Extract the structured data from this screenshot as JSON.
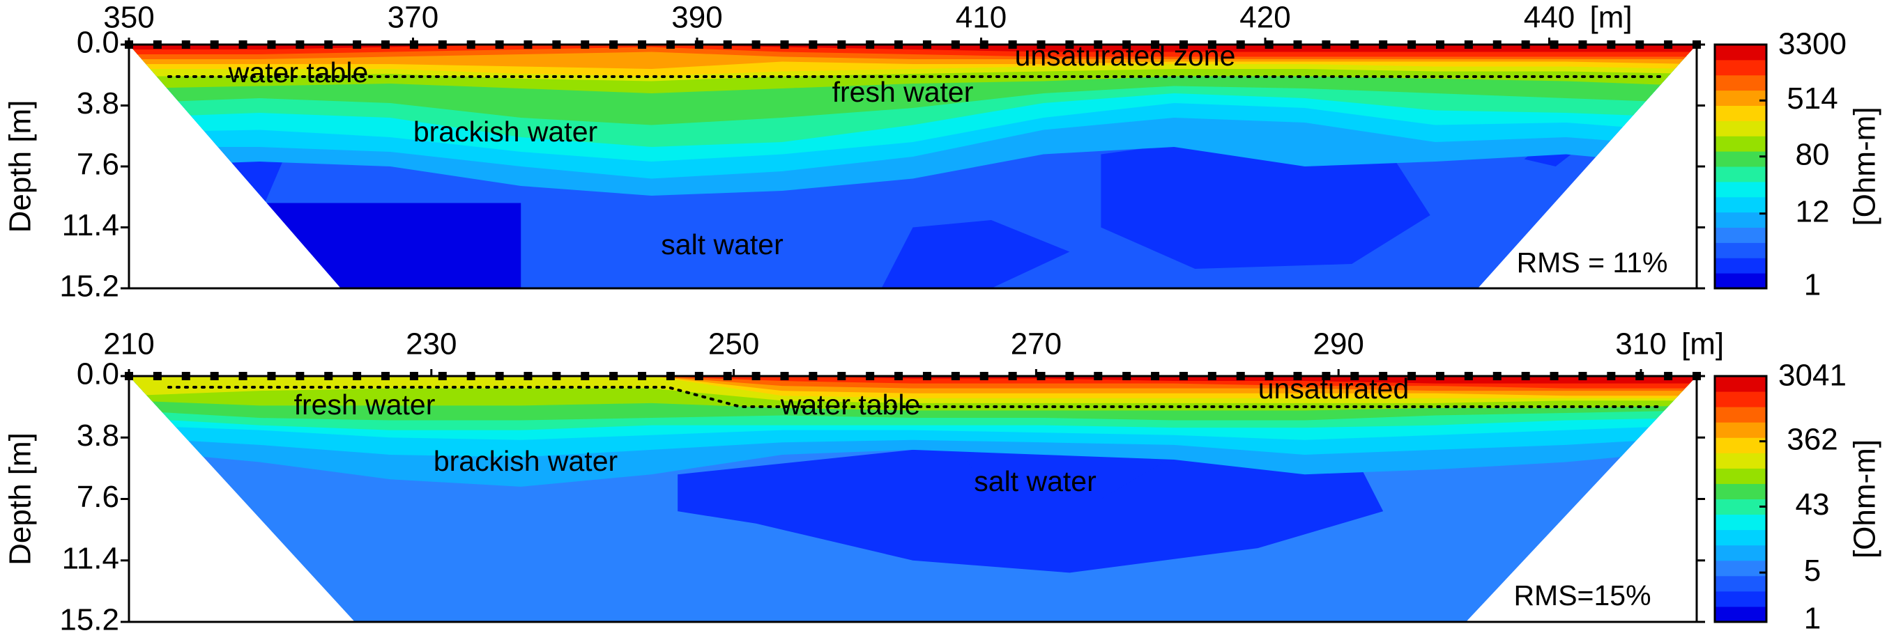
{
  "chart_data": [
    {
      "type": "contour",
      "xticks": [
        350,
        370,
        390,
        410,
        420,
        440
      ],
      "x_unit_label": "[m]",
      "ylabel": "Depth [m]",
      "ylim": [
        0,
        15.2
      ],
      "yticks": [
        {
          "value": 0,
          "label": "0.0"
        },
        3.8,
        7.6,
        11.4,
        15.2
      ],
      "colorbar": {
        "label": "[Ohm-m]",
        "lim": [
          1,
          3300
        ],
        "log": true,
        "ticks": [
          1,
          12,
          80,
          514,
          3300
        ]
      },
      "annotations": [
        "water table",
        "unsaturated zone",
        "fresh water",
        "brackish water",
        "salt water",
        "RMS = 11%"
      ]
    },
    {
      "type": "contour",
      "xticks": [
        210,
        230,
        250,
        270,
        290,
        310
      ],
      "x_unit_label": "[m]",
      "ylabel": "Depth [m]",
      "ylim": [
        0,
        15.2
      ],
      "yticks": [
        {
          "value": 0,
          "label": "0.0"
        },
        3.8,
        7.6,
        11.4,
        15.2
      ],
      "colorbar": {
        "label": "[Ohm-m]",
        "lim": [
          1,
          3041
        ],
        "log": true,
        "ticks": [
          1,
          5,
          43,
          362,
          3041
        ]
      },
      "annotations": [
        "fresh water",
        "water table",
        "unsaturated",
        "brackish water",
        "salt water",
        "RMS=15%"
      ]
    }
  ]
}
